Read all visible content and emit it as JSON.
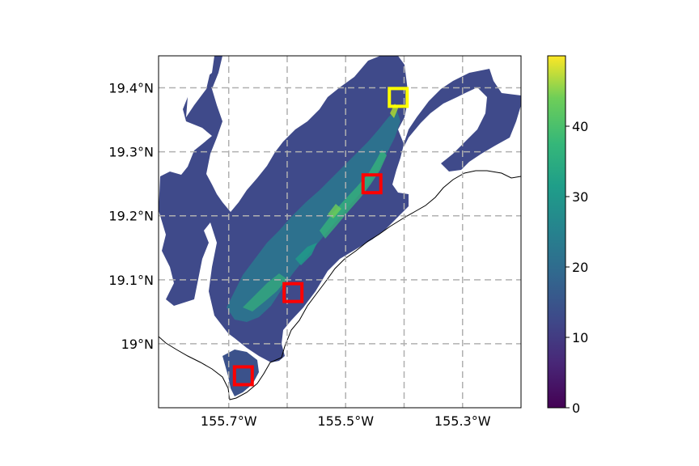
{
  "map": {
    "type": "heatmap",
    "lon_range": [
      -155.82,
      -155.2
    ],
    "lat_range": [
      18.9,
      19.45
    ],
    "grid_lines": true,
    "lon_ticks": [
      {
        "value": -155.7,
        "label": "155.7°W"
      },
      {
        "value": -155.5,
        "label": "155.5°W"
      },
      {
        "value": -155.3,
        "label": "155.3°W"
      }
    ],
    "extra_grid_lon": [
      -155.6,
      -155.4
    ],
    "lat_ticks": [
      {
        "value": 19.4,
        "label": "19.4°N"
      },
      {
        "value": 19.3,
        "label": "19.3°N"
      },
      {
        "value": 19.2,
        "label": "19.2°N"
      },
      {
        "value": 19.1,
        "label": "19.1°N"
      },
      {
        "value": 19.0,
        "label": "19°N"
      }
    ],
    "markers": [
      {
        "name": "yellow-box",
        "color": "#ffff00",
        "lon": -155.41,
        "lat": 19.385
      },
      {
        "name": "red-box-1",
        "color": "#ff0000",
        "lon": -155.455,
        "lat": 19.25
      },
      {
        "name": "red-box-2",
        "color": "#ff0000",
        "lon": -155.59,
        "lat": 19.08
      },
      {
        "name": "red-box-3",
        "color": "#ff0000",
        "lon": -155.675,
        "lat": 18.95
      }
    ]
  },
  "colorbar": {
    "colormap": "viridis",
    "range": [
      0,
      50
    ],
    "ticks": [
      {
        "value": 0,
        "label": "0"
      },
      {
        "value": 10,
        "label": "10"
      },
      {
        "value": 20,
        "label": "20"
      },
      {
        "value": 30,
        "label": "30"
      },
      {
        "value": 40,
        "label": "40"
      }
    ]
  }
}
